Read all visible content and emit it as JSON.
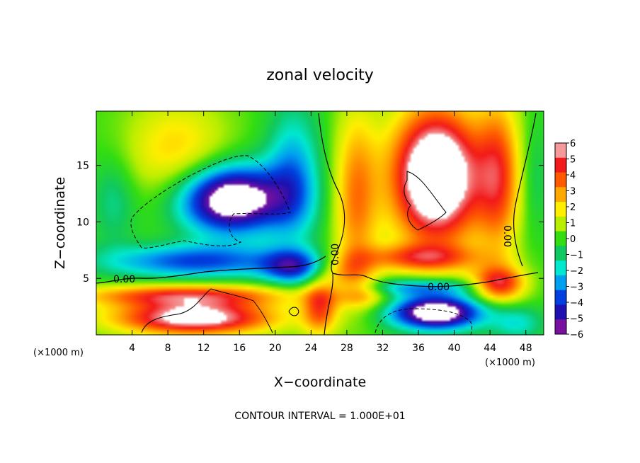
{
  "chart_data": {
    "type": "heatmap",
    "title": "zonal velocity",
    "xlabel": "X−coordinate",
    "ylabel": "Z−coordinate",
    "x_unit": "(×1000 m)",
    "y_unit": "(×1000 m)",
    "xlim": [
      0,
      50
    ],
    "ylim": [
      0,
      19.8
    ],
    "x_ticks": [
      4,
      8,
      12,
      16,
      20,
      24,
      28,
      32,
      36,
      40,
      44,
      48
    ],
    "y_ticks": [
      5,
      10,
      15
    ],
    "colorbar": {
      "range": [
        -6,
        6
      ],
      "ticks": [
        6,
        5,
        4,
        3,
        2,
        1,
        0,
        -1,
        -2,
        -3,
        -4,
        -5,
        -6
      ],
      "tick_labels": [
        "6",
        "5",
        "4",
        "3",
        "2",
        "1",
        "0",
        "−1",
        "−2",
        "−3",
        "−4",
        "−5",
        "−6"
      ],
      "colors": [
        "#f49a9a",
        "#f21a1a",
        "#ff5a00",
        "#ffa800",
        "#ffee00",
        "#b8ee00",
        "#33dd11",
        "#10c860",
        "#00e8d0",
        "#00a0f0",
        "#0040e0",
        "#1e10b0",
        "#7a10a0"
      ]
    },
    "contour_labels": [
      "0.00",
      "0.00",
      "0.00",
      "0.00"
    ],
    "contour_interval_text": "CONTOUR INTERVAL = 1.000E+01",
    "field_components": [
      {
        "x": 11,
        "z": 6.5,
        "sx": 10,
        "sz": 1.5,
        "v": -4
      },
      {
        "x": 9,
        "z": 16,
        "sx": 6,
        "sz": 5,
        "v": 2.5
      },
      {
        "x": 2,
        "z": 12,
        "sx": 2.5,
        "sz": 4,
        "v": -1.5
      },
      {
        "x": 15,
        "z": 12,
        "sx": 6,
        "sz": 3,
        "v": -8
      },
      {
        "x": 22,
        "z": 14,
        "sx": 3,
        "sz": 6,
        "v": -3
      },
      {
        "x": 22,
        "z": 6,
        "sx": 3.5,
        "sz": 1.5,
        "v": -4
      },
      {
        "x": 29,
        "z": 12,
        "sx": 2.5,
        "sz": 8,
        "v": 3.5
      },
      {
        "x": 28,
        "z": 5.5,
        "sx": 3,
        "sz": 1.5,
        "v": 2
      },
      {
        "x": 38,
        "z": 14,
        "sx": 5,
        "sz": 6,
        "v": 9
      },
      {
        "x": 36,
        "z": 6.8,
        "sx": 7,
        "sz": 1.2,
        "v": 3.5
      },
      {
        "x": 45,
        "z": 14,
        "sx": 2.5,
        "sz": 7,
        "v": 4
      },
      {
        "x": 49,
        "z": 14,
        "sx": 1.5,
        "sz": 5,
        "v": -1
      },
      {
        "x": 45,
        "z": 4.5,
        "sx": 3,
        "sz": 1.5,
        "v": 5
      },
      {
        "x": 10,
        "z": 3.5,
        "sx": 12,
        "sz": 1,
        "v": 4.5
      },
      {
        "x": 11,
        "z": 1.5,
        "sx": 9,
        "sz": 1.5,
        "v": 7
      },
      {
        "x": 25,
        "z": 2.5,
        "sx": 2,
        "sz": 2.5,
        "v": 4
      },
      {
        "x": 30,
        "z": 3.5,
        "sx": 3,
        "sz": 1.2,
        "v": 2
      },
      {
        "x": 38,
        "z": 2,
        "sx": 5,
        "sz": 1.5,
        "v": -8
      },
      {
        "x": 36,
        "z": 4.2,
        "sx": 7,
        "sz": 0.8,
        "v": -3
      },
      {
        "x": 47,
        "z": 1,
        "sx": 3,
        "sz": 1.5,
        "v": -2
      }
    ]
  }
}
